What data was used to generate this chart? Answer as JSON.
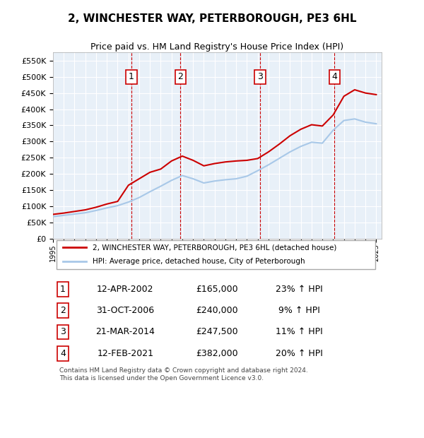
{
  "title": "2, WINCHESTER WAY, PETERBOROUGH, PE3 6HL",
  "subtitle": "Price paid vs. HM Land Registry's House Price Index (HPI)",
  "footer": "Contains HM Land Registry data © Crown copyright and database right 2024.\nThis data is licensed under the Open Government Licence v3.0.",
  "legend_line1": "2, WINCHESTER WAY, PETERBOROUGH, PE3 6HL (detached house)",
  "legend_line2": "HPI: Average price, detached house, City of Peterborough",
  "sales": [
    {
      "num": 1,
      "date": "12-APR-2002",
      "price": 165000,
      "pct": "23%",
      "dir": "↑",
      "x_year": 2002.28
    },
    {
      "num": 2,
      "date": "31-OCT-2006",
      "price": 240000,
      "pct": "9%",
      "dir": "↑",
      "x_year": 2006.83
    },
    {
      "num": 3,
      "date": "21-MAR-2014",
      "price": 247500,
      "pct": "11%",
      "dir": "↑",
      "x_year": 2014.22
    },
    {
      "num": 4,
      "date": "12-FEB-2021",
      "price": 382000,
      "pct": "20%",
      "dir": "↑",
      "x_year": 2021.12
    }
  ],
  "hpi_color": "#a8c8e8",
  "price_color": "#cc0000",
  "vline_color": "#cc0000",
  "bg_color": "#ddeeff",
  "plot_bg": "#e8f0f8",
  "ylim": [
    0,
    575000
  ],
  "yticks": [
    0,
    50000,
    100000,
    150000,
    200000,
    250000,
    300000,
    350000,
    400000,
    450000,
    500000,
    550000
  ],
  "xlim_start": 1995,
  "xlim_end": 2025.5,
  "hpi_years": [
    1995,
    1996,
    1997,
    1998,
    1999,
    2000,
    2001,
    2002,
    2003,
    2004,
    2005,
    2006,
    2007,
    2008,
    2009,
    2010,
    2011,
    2012,
    2013,
    2014,
    2015,
    2016,
    2017,
    2018,
    2019,
    2020,
    2021,
    2022,
    2023,
    2024,
    2025
  ],
  "hpi_values": [
    68000,
    72000,
    76000,
    80000,
    87000,
    95000,
    102000,
    113000,
    127000,
    145000,
    162000,
    180000,
    195000,
    185000,
    172000,
    178000,
    182000,
    185000,
    193000,
    210000,
    228000,
    248000,
    268000,
    285000,
    298000,
    295000,
    335000,
    365000,
    370000,
    360000,
    355000
  ],
  "price_years": [
    1995,
    1996,
    1997,
    1998,
    1999,
    2000,
    2001,
    2002,
    2003,
    2004,
    2005,
    2006,
    2007,
    2008,
    2009,
    2010,
    2011,
    2012,
    2013,
    2014,
    2015,
    2016,
    2017,
    2018,
    2019,
    2020,
    2021,
    2022,
    2023,
    2024,
    2025
  ],
  "price_values": [
    75000,
    79000,
    84000,
    89000,
    97000,
    107000,
    115000,
    165000,
    185000,
    205000,
    215000,
    240000,
    255000,
    242000,
    225000,
    232000,
    237000,
    240000,
    242000,
    247500,
    268000,
    292000,
    318000,
    338000,
    352000,
    348000,
    382000,
    440000,
    460000,
    450000,
    445000
  ]
}
